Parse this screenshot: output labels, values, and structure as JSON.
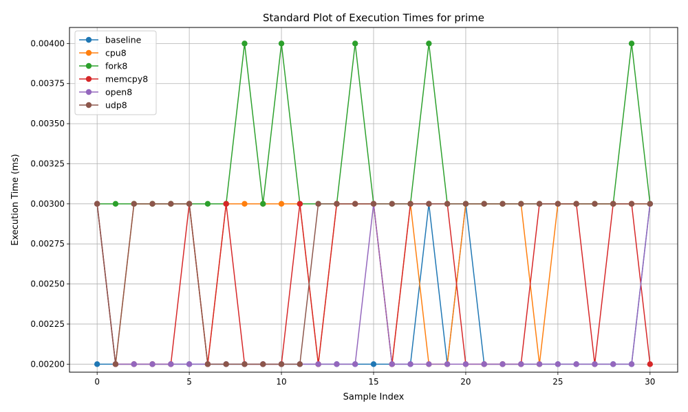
{
  "chart_data": {
    "type": "line",
    "title": "Standard Plot of Execution Times for prime",
    "xlabel": "Sample Index",
    "ylabel": "Execution Time (ms)",
    "xlim": [
      -1.5,
      31.5
    ],
    "ylim": [
      0.00195,
      0.0041
    ],
    "xticks": [
      0,
      5,
      10,
      15,
      20,
      25,
      30
    ],
    "xtick_labels": [
      "0",
      "5",
      "10",
      "15",
      "20",
      "25",
      "30"
    ],
    "yticks": [
      0.002,
      0.00225,
      0.0025,
      0.00275,
      0.003,
      0.00325,
      0.0035,
      0.00375,
      0.004
    ],
    "ytick_labels": [
      "0.00200",
      "0.00225",
      "0.00250",
      "0.00275",
      "0.00300",
      "0.00325",
      "0.00350",
      "0.00375",
      "0.00400"
    ],
    "grid": true,
    "legend_position": "top-left",
    "x": [
      0,
      1,
      2,
      3,
      4,
      5,
      6,
      7,
      8,
      9,
      10,
      11,
      12,
      13,
      14,
      15,
      16,
      17,
      18,
      19,
      20,
      21,
      22,
      23,
      24,
      25,
      26,
      27,
      28,
      29,
      30
    ],
    "series": [
      {
        "name": "baseline",
        "color": "#1f77b4",
        "values": [
          0.002,
          0.002,
          0.002,
          0.002,
          0.002,
          0.002,
          0.002,
          0.002,
          0.002,
          0.002,
          0.002,
          0.002,
          0.002,
          0.002,
          0.002,
          0.002,
          0.002,
          0.002,
          0.003,
          0.002,
          0.003,
          0.002,
          0.002,
          0.002,
          0.002,
          0.002,
          0.002,
          0.002,
          0.002,
          0.002,
          0.003
        ]
      },
      {
        "name": "cpu8",
        "color": "#ff7f0e",
        "values": [
          0.003,
          0.002,
          0.003,
          0.003,
          0.003,
          0.003,
          0.002,
          0.003,
          0.003,
          0.003,
          0.003,
          0.003,
          0.002,
          0.003,
          0.003,
          0.003,
          0.002,
          0.003,
          0.002,
          0.002,
          0.003,
          0.003,
          0.003,
          0.003,
          0.002,
          0.003,
          0.003,
          0.003,
          0.003,
          0.003,
          0.003
        ]
      },
      {
        "name": "fork8",
        "color": "#2ca02c",
        "values": [
          0.003,
          0.003,
          0.003,
          0.003,
          0.003,
          0.003,
          0.003,
          0.003,
          0.004,
          0.003,
          0.004,
          0.003,
          0.003,
          0.003,
          0.004,
          0.003,
          0.003,
          0.003,
          0.004,
          0.003,
          0.003,
          0.003,
          0.003,
          0.003,
          0.003,
          0.003,
          0.003,
          0.003,
          0.003,
          0.004,
          0.003
        ]
      },
      {
        "name": "memcpy8",
        "color": "#d62728",
        "values": [
          0.003,
          0.002,
          0.002,
          0.002,
          0.002,
          0.003,
          0.002,
          0.003,
          0.002,
          0.002,
          0.002,
          0.003,
          0.002,
          0.003,
          0.003,
          0.003,
          0.002,
          0.003,
          0.003,
          0.003,
          0.002,
          0.002,
          0.002,
          0.002,
          0.003,
          0.003,
          0.003,
          0.002,
          0.003,
          0.003,
          0.002
        ]
      },
      {
        "name": "open8",
        "color": "#9467bd",
        "values": [
          0.003,
          0.002,
          0.002,
          0.002,
          0.002,
          0.002,
          0.002,
          0.002,
          0.002,
          0.002,
          0.002,
          0.002,
          0.002,
          0.002,
          0.002,
          0.003,
          0.002,
          0.002,
          0.002,
          0.002,
          0.002,
          0.002,
          0.002,
          0.002,
          0.002,
          0.002,
          0.002,
          0.002,
          0.002,
          0.002,
          0.003
        ]
      },
      {
        "name": "udp8",
        "color": "#8c564b",
        "values": [
          0.003,
          0.002,
          0.003,
          0.003,
          0.003,
          0.003,
          0.002,
          0.002,
          0.002,
          0.002,
          0.002,
          0.002,
          0.003,
          0.003,
          0.003,
          0.003,
          0.003,
          0.003,
          0.003,
          0.003,
          0.003,
          0.003,
          0.003,
          0.003,
          0.003,
          0.003,
          0.003,
          0.003,
          0.003,
          0.003,
          0.003
        ]
      }
    ]
  }
}
